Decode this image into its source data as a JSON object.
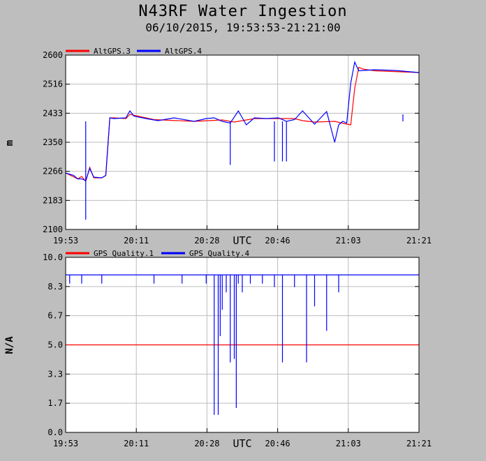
{
  "title": "N43RF Water Ingestion",
  "subtitle": "06/10/2015, 19:53:53-21:21:00",
  "colors": {
    "background": "#bebebe",
    "series_red": "#ff0000",
    "series_blue": "#0000ff"
  },
  "chart_data": [
    {
      "type": "line",
      "title": "",
      "xlabel": "UTC",
      "ylabel": "m",
      "x_tick_labels": [
        "19:53",
        "20:11",
        "20:28",
        "20:46",
        "21:03",
        "21:21"
      ],
      "x_range": [
        "19:53",
        "21:21"
      ],
      "ylim": [
        2100,
        2600
      ],
      "y_tick_labels": [
        "2100",
        "2183",
        "2266",
        "2350",
        "2433",
        "2516",
        "2600"
      ],
      "grid": true,
      "legend_placement": "top-left",
      "series": [
        {
          "name": "AltGPS.3",
          "color": "#ff0000",
          "x": [
            "19:53",
            "19:56",
            "19:57",
            "19:58",
            "19:59",
            "20:00",
            "20:02",
            "20:03",
            "20:04",
            "20:05",
            "20:08",
            "20:09",
            "20:15",
            "20:25",
            "20:32",
            "20:35",
            "20:40",
            "20:50",
            "20:52",
            "20:55",
            "21:00",
            "21:03",
            "21:04",
            "21:05",
            "21:06",
            "21:07",
            "21:10",
            "21:21"
          ],
          "y": [
            2262,
            2245,
            2252,
            2238,
            2278,
            2248,
            2248,
            2255,
            2420,
            2420,
            2418,
            2430,
            2415,
            2410,
            2414,
            2408,
            2418,
            2418,
            2412,
            2408,
            2410,
            2402,
            2400,
            2505,
            2565,
            2560,
            2555,
            2550
          ]
        },
        {
          "name": "AltGPS.4",
          "color": "#0000ff",
          "x": [
            "19:53",
            "19:55",
            "19:56",
            "19:57",
            "19:58",
            "19:59",
            "20:00",
            "20:02",
            "20:03",
            "20:04",
            "20:05",
            "20:08",
            "20:09",
            "20:10",
            "20:13",
            "20:16",
            "20:20",
            "20:25",
            "20:28",
            "20:30",
            "20:32",
            "20:34",
            "20:36",
            "20:38",
            "20:40",
            "20:43",
            "20:46",
            "20:48",
            "20:50",
            "20:52",
            "20:55",
            "20:58",
            "21:00",
            "21:01",
            "21:02",
            "21:03",
            "21:04",
            "21:05",
            "21:06",
            "21:10",
            "21:15",
            "21:21"
          ],
          "y": [
            2262,
            2255,
            2245,
            2245,
            2240,
            2275,
            2250,
            2248,
            2255,
            2420,
            2418,
            2420,
            2440,
            2425,
            2418,
            2412,
            2420,
            2410,
            2418,
            2420,
            2410,
            2405,
            2440,
            2400,
            2420,
            2418,
            2420,
            2410,
            2415,
            2440,
            2402,
            2438,
            2350,
            2400,
            2410,
            2405,
            2520,
            2580,
            2555,
            2558,
            2556,
            2550
          ]
        }
      ],
      "spikes": {
        "series": "AltGPS.4",
        "x": [
          "19:58",
          "20:34",
          "20:45",
          "20:47",
          "20:48",
          "21:17"
        ],
        "y_min": [
          2128,
          2285,
          2295,
          2295,
          2295,
          2430
        ]
      }
    },
    {
      "type": "line",
      "title": "",
      "xlabel": "UTC",
      "ylabel": "N/A",
      "x_tick_labels": [
        "19:53",
        "20:11",
        "20:28",
        "20:46",
        "21:03",
        "21:21"
      ],
      "x_range": [
        "19:53",
        "21:21"
      ],
      "ylim": [
        0.0,
        10.0
      ],
      "y_tick_labels": [
        "0.0",
        "1.7",
        "3.3",
        "5.0",
        "6.7",
        "8.3",
        "10.0"
      ],
      "grid": true,
      "legend_placement": "top-left",
      "series": [
        {
          "name": "GPS_Quality.1",
          "color": "#ff0000",
          "x": [
            "19:53",
            "21:21"
          ],
          "y": [
            5.0,
            5.0
          ]
        },
        {
          "name": "GPS_Quality.4",
          "color": "#0000ff",
          "x": [
            "19:53",
            "21:21"
          ],
          "y": [
            9.0,
            9.0
          ]
        }
      ],
      "dips": {
        "series": "GPS_Quality.4",
        "x": [
          "19:54",
          "19:57",
          "20:02",
          "20:15",
          "20:22",
          "20:28",
          "20:30",
          "20:31",
          "20:31.5",
          "20:32",
          "20:33",
          "20:34",
          "20:35",
          "20:35.5",
          "20:36",
          "20:37",
          "20:39",
          "20:42",
          "20:45",
          "20:47",
          "20:50",
          "20:53",
          "20:55",
          "20:58",
          "21:01"
        ],
        "min": [
          8.5,
          8.5,
          8.5,
          8.5,
          8.5,
          8.5,
          1.0,
          1.0,
          5.5,
          7.0,
          8.0,
          4.0,
          4.2,
          1.4,
          8.5,
          8.0,
          8.5,
          8.5,
          8.3,
          4.0,
          8.3,
          4.0,
          7.2,
          5.8,
          8.0
        ]
      }
    }
  ]
}
